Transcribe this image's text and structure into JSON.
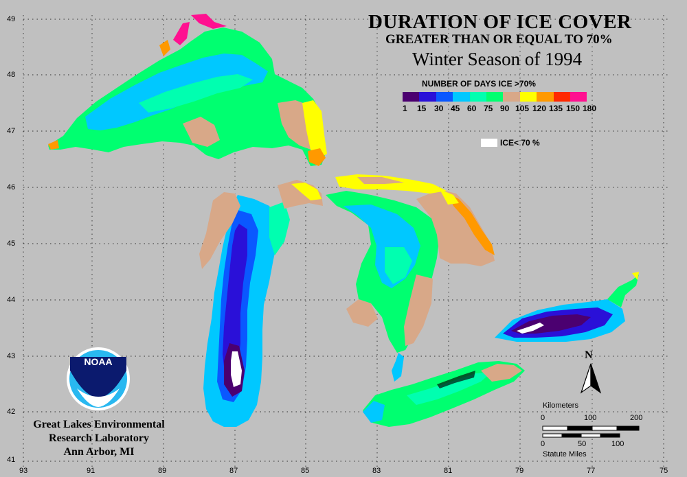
{
  "title": {
    "line1": "DURATION OF ICE COVER",
    "line2": "GREATER THAN OR EQUAL TO 70%",
    "line3": "Winter Season of 1994"
  },
  "legend": {
    "title": "NUMBER OF DAYS ICE >70%",
    "colors": [
      "#4b0070",
      "#2a10d8",
      "#0a58ff",
      "#00c8ff",
      "#00ffb0",
      "#00ff70",
      "#d8a888",
      "#ffff00",
      "#ff9900",
      "#ff2800",
      "#ff1090"
    ],
    "labels": [
      "1",
      "15",
      "30",
      "45",
      "60",
      "75",
      "90",
      "105",
      "120",
      "135",
      "150",
      "180"
    ],
    "ice_key_label": "ICE< 70 %"
  },
  "axes": {
    "longitudes": [
      "93",
      "91",
      "89",
      "87",
      "85",
      "83",
      "81",
      "79",
      "77",
      "75"
    ],
    "latitudes": [
      "49",
      "48",
      "47",
      "46",
      "45",
      "44",
      "43",
      "42",
      "41"
    ]
  },
  "logo": {
    "text": "NOAA"
  },
  "credit": {
    "line1": "Great Lakes Environmental",
    "line2": "Research Laboratory",
    "line3": "Ann Arbor, MI"
  },
  "north_arrow": {
    "label": "N"
  },
  "scale": {
    "km_title": "Kilometers",
    "km_ticks": [
      "0",
      "100",
      "200"
    ],
    "mi_ticks": [
      "0",
      "50",
      "100"
    ],
    "mi_title": "Statute Miles"
  }
}
